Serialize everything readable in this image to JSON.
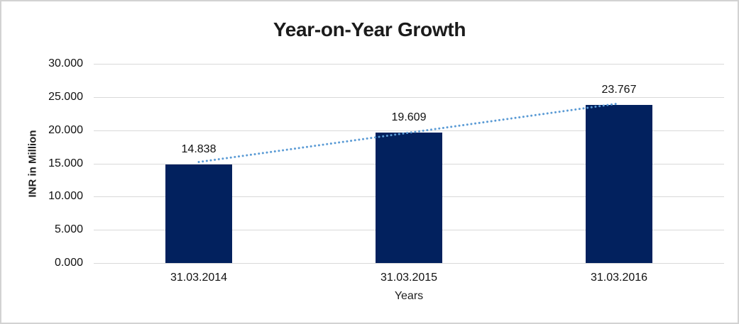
{
  "chart_data": {
    "type": "bar",
    "title": "Year-on-Year Growth",
    "xlabel": "Years",
    "ylabel": "INR in Million",
    "categories": [
      "31.03.2014",
      "31.03.2015",
      "31.03.2016"
    ],
    "values": [
      14.838,
      19.609,
      23.767
    ],
    "data_labels": [
      "14.838",
      "19.609",
      "23.767"
    ],
    "ylim": [
      0,
      30
    ],
    "y_tick_values": [
      0,
      5,
      10,
      15,
      20,
      25,
      30
    ],
    "y_tick_labels": [
      "0.000",
      "5.000",
      "10.000",
      "15.000",
      "20.000",
      "25.000",
      "30.000"
    ],
    "grid": true,
    "legend": "none",
    "trendline": {
      "style": "dotted",
      "from_category": "31.03.2014",
      "to_category": "31.03.2016"
    },
    "colors": {
      "bar": "#02215E",
      "trendline": "#5B9BD5",
      "gridline": "#D9D9D9",
      "axis_line": "#D9D9D9",
      "text": "#1F1F1F",
      "frame_border": "#D2D2D2",
      "background": "#FFFFFF"
    }
  }
}
